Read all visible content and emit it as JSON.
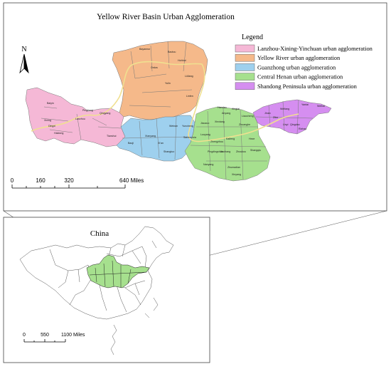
{
  "main_map": {
    "title": "Yellow River Basin Urban Agglomeration",
    "north_label": "N",
    "legend": {
      "title": "Legend",
      "items": [
        {
          "label": "Lanzhou-Xining-Yinchuan urban agglomeration",
          "color": "#f5b8d6"
        },
        {
          "label": "Yellow River urban agglomeration",
          "color": "#f5b98a"
        },
        {
          "label": "Guanzhong urban agglomeration",
          "color": "#9ed0ee"
        },
        {
          "label": "Central Henan urban agglomeration",
          "color": "#a6e08e"
        },
        {
          "label": "Shandong Peninsula urban agglomeration",
          "color": "#d58ef0"
        }
      ]
    },
    "scale_bar": {
      "ticks": [
        "0",
        "160",
        "320",
        "640 Miles"
      ]
    },
    "river_color": "#f0e090",
    "city_labels": [
      "Baotou",
      "Bayannur",
      "Hohhot",
      "Ordos",
      "Yulin",
      "Lüliang",
      "Linfen",
      "Baiyin",
      "Dingxi",
      "Lanzhou",
      "Xining",
      "Haidong",
      "Pingliang",
      "Qingyang",
      "Tianshui",
      "Baoji",
      "Xianyang",
      "Xi'an",
      "Weinan",
      "Shangluo",
      "Yuncheng",
      "Sanmenxia",
      "Luoyang",
      "Zhengzhou",
      "Kaifeng",
      "Xinxiang",
      "Jiaozuo",
      "Anyang",
      "Handan",
      "Xingtai",
      "Liaocheng",
      "Heze",
      "Shangqiu",
      "Zhoukou",
      "Xuchang",
      "Pingdingshan",
      "Nanyang",
      "Zhumadian",
      "Xinyang",
      "Zhuanghe",
      "Jinan",
      "Weifang",
      "Yantai",
      "Weihai",
      "Qingdao",
      "Rizhao",
      "Linyi",
      "Zibo"
    ]
  },
  "inset_map": {
    "title": "China",
    "scale_bar": {
      "ticks": [
        "0",
        "550",
        "1100 Miles"
      ]
    }
  }
}
